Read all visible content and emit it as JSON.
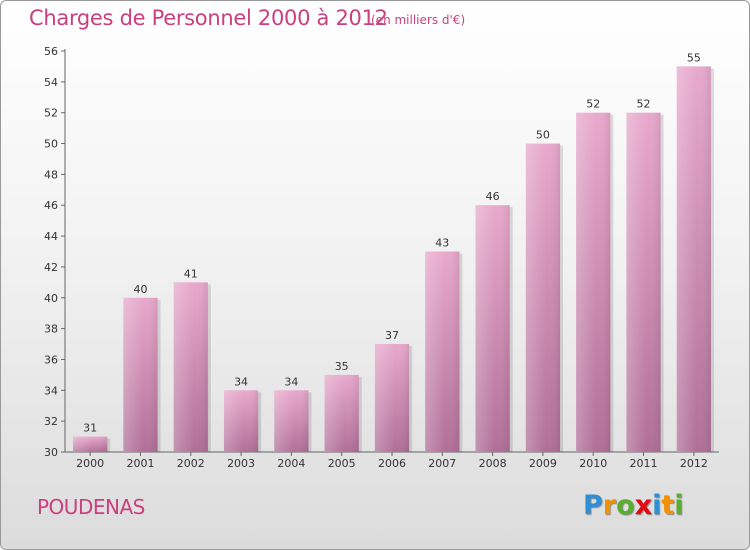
{
  "header": {
    "title": "Charges de Personnel 2000 à 2012",
    "subtitle": "(en milliers d'€)"
  },
  "footer": {
    "commune": "POUDENAS",
    "brand": {
      "letters": [
        "P",
        "r",
        "o",
        "x",
        "i",
        "t",
        "i"
      ],
      "colors": [
        "#2f8fd6",
        "#f39200",
        "#5aad32",
        "#e30613",
        "#2f8fd6",
        "#f39200",
        "#5aad32"
      ]
    }
  },
  "chart_data": {
    "type": "bar",
    "categories": [
      "2000",
      "2001",
      "2002",
      "2003",
      "2004",
      "2005",
      "2006",
      "2007",
      "2008",
      "2009",
      "2010",
      "2011",
      "2012"
    ],
    "values": [
      31,
      40,
      41,
      34,
      34,
      35,
      37,
      43,
      46,
      50,
      52,
      52,
      55
    ],
    "data_labels": [
      "31",
      "40",
      "41",
      "34",
      "34",
      "35",
      "37",
      "43",
      "46",
      "50",
      "52",
      "52",
      "55"
    ],
    "y_ticks": [
      "30",
      "32",
      "34",
      "36",
      "38",
      "40",
      "42",
      "44",
      "46",
      "48",
      "50",
      "52",
      "54",
      "56"
    ],
    "ylim": [
      30,
      56
    ],
    "grid": false,
    "bar_color": "#d98cb6",
    "bar_color_dark": "#b46b96",
    "text_color": "#cc3f7f"
  }
}
